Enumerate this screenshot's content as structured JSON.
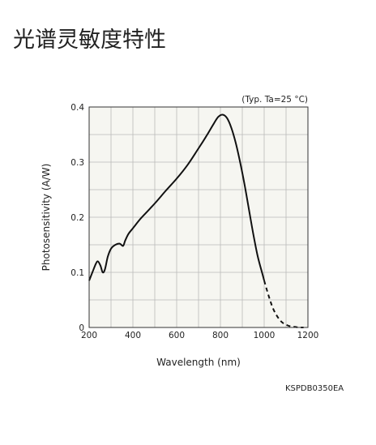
{
  "page": {
    "title": "光谱灵敏度特性",
    "code": "KSPDB0350EA"
  },
  "chart_data": {
    "type": "line",
    "note": "(Typ. Ta=25 °C)",
    "xlabel": "Wavelength (nm)",
    "ylabel": "Photosensitivity (A/W)",
    "xlim": [
      200,
      1200
    ],
    "ylim": [
      0,
      0.4
    ],
    "x_ticks": [
      200,
      400,
      600,
      800,
      1000,
      1200
    ],
    "y_ticks": [
      0,
      0.1,
      0.2,
      0.3,
      0.4
    ],
    "y_tick_labels": [
      "0",
      "0.1",
      "0.2",
      "0.3",
      "0.4"
    ],
    "grid": true,
    "plot_background": "#f6f6f1",
    "line_color": "#111111",
    "series": [
      {
        "style": "solid",
        "x": [
          200,
          215,
          230,
          240,
          252,
          262,
          272,
          285,
          300,
          320,
          340,
          355,
          365,
          380,
          400,
          430,
          460,
          500,
          550,
          600,
          650,
          700,
          740,
          770,
          790,
          810,
          830,
          850,
          870,
          890,
          910,
          930,
          950,
          970,
          990,
          1000
        ],
        "y": [
          0.085,
          0.1,
          0.115,
          0.12,
          0.112,
          0.1,
          0.105,
          0.128,
          0.143,
          0.15,
          0.152,
          0.148,
          0.158,
          0.17,
          0.18,
          0.195,
          0.208,
          0.225,
          0.248,
          0.27,
          0.295,
          0.325,
          0.35,
          0.37,
          0.382,
          0.386,
          0.38,
          0.362,
          0.335,
          0.3,
          0.26,
          0.215,
          0.17,
          0.13,
          0.1,
          0.085
        ]
      },
      {
        "style": "dashed",
        "x": [
          1000,
          1020,
          1040,
          1060,
          1080,
          1100,
          1120,
          1140,
          1160,
          1180
        ],
        "y": [
          0.085,
          0.058,
          0.035,
          0.02,
          0.01,
          0.005,
          0.002,
          0.001,
          0.0,
          0.0
        ]
      }
    ]
  }
}
